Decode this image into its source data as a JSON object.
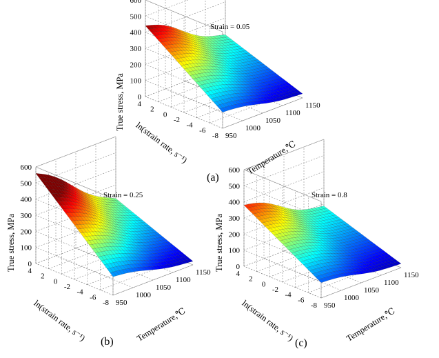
{
  "figure": {
    "description_labels": [
      "(a)",
      "(b)",
      "(c)"
    ]
  },
  "colormap": [
    "#00008f",
    "#0000ff",
    "#0080ff",
    "#00ffff",
    "#80ff80",
    "#ffff00",
    "#ff8000",
    "#ff0000",
    "#800000"
  ],
  "chart_data": [
    {
      "type": "surface",
      "panel": "(a)",
      "title": "Strain = 0.05",
      "zlabel": "True stress, MPa",
      "ylabel": "ln(strain rate, s⁻¹)",
      "xlabel": "Temperature,℃",
      "xlim": [
        950,
        1150
      ],
      "ylim": [
        -8,
        4
      ],
      "zlim": [
        0,
        600
      ],
      "xticks": [
        "950",
        "1000",
        "1050",
        "1100",
        "1150"
      ],
      "yticks": [
        "-8",
        "-6",
        "-4",
        "-2",
        "0",
        "2",
        "4"
      ],
      "zticks": [
        "0",
        "100",
        "200",
        "300",
        "400",
        "500",
        "600"
      ],
      "corner_values_MPa": {
        "T950_lnRate4": 440,
        "T1150_lnRate4": 185,
        "T950_lnRate-8": 100,
        "T1150_lnRate-8": 22
      }
    },
    {
      "type": "surface",
      "panel": "(b)",
      "title": "Strain = 0.25",
      "zlabel": "True stress, MPa",
      "ylabel": "ln(strain rate, s⁻¹)",
      "xlabel": "Temperature,℃",
      "xlim": [
        950,
        1150
      ],
      "ylim": [
        -8,
        4
      ],
      "zlim": [
        0,
        600
      ],
      "xticks": [
        "950",
        "1000",
        "1050",
        "1100",
        "1150"
      ],
      "yticks": [
        "-8",
        "-6",
        "-4",
        "-2",
        "0",
        "2",
        "4"
      ],
      "zticks": [
        "0",
        "100",
        "200",
        "300",
        "400",
        "500",
        "600"
      ],
      "corner_values_MPa": {
        "T950_lnRate4": 560,
        "T1150_lnRate4": 205,
        "T950_lnRate-8": 115,
        "T1150_lnRate-8": 18
      }
    },
    {
      "type": "surface",
      "panel": "(c)",
      "title": "Strain = 0.8",
      "zlabel": "True stress, MPa",
      "ylabel": "ln(strain rate, s⁻¹)",
      "xlabel": "Temperature,℃",
      "xlim": [
        950,
        1150
      ],
      "ylim": [
        -8,
        4
      ],
      "zlim": [
        0,
        600
      ],
      "xticks": [
        "950",
        "1000",
        "1050",
        "1100",
        "1150"
      ],
      "yticks": [
        "-8",
        "-6",
        "-4",
        "-2",
        "0",
        "2",
        "4"
      ],
      "zticks": [
        "0",
        "100",
        "200",
        "300",
        "400",
        "500",
        "600"
      ],
      "corner_values_MPa": {
        "T950_lnRate4": 380,
        "T1150_lnRate4": 175,
        "T950_lnRate-8": 95,
        "T1150_lnRate-8": 20
      }
    }
  ]
}
